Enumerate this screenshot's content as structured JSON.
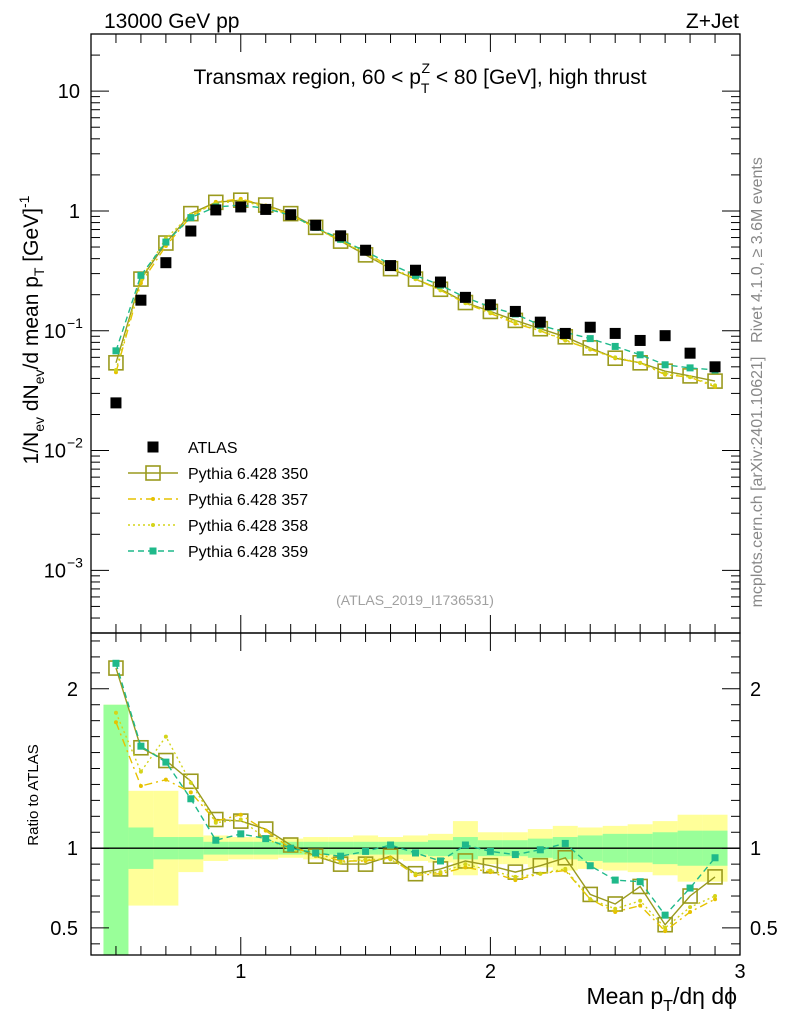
{
  "header": {
    "left": "13000 GeV pp",
    "right": "Z+Jet"
  },
  "title": {
    "prefix": "Transmax region, 60 < p",
    "sub": "T",
    "sup": "Z",
    "suffix": " < 80 [GeV], high thrust"
  },
  "side": {
    "rivet": "Rivet 4.1.0, ≥ 3.6M events",
    "mcplots": "mcplots.cern.ch [arXiv:2401.10621]"
  },
  "analysis_id": "(ATLAS_2019_I1736531)",
  "ylabel_main": "1/N_ev dN_ev/d mean p_T [GeV]^-1",
  "ylabel_ratio": "Ratio to ATLAS",
  "xlabel": "Mean p_T/dη dϕ",
  "colors": {
    "atlas": "#000000",
    "p350": "#9a9a1e",
    "p357": "#e6c200",
    "p358": "#d4d41a",
    "p359": "#1fb98a",
    "band_green": "#99ff99",
    "band_yellow": "#ffff99"
  },
  "chart_data": [
    {
      "type": "scatter",
      "panel": "main",
      "yscale": "log",
      "xlim": [
        0.4,
        3.0
      ],
      "ylim": [
        0.0003,
        30
      ],
      "x_ticks": [
        1,
        2,
        3
      ],
      "y_ticks": [
        {
          "v": 10,
          "label": "10"
        },
        {
          "v": 1,
          "label": "1"
        },
        {
          "v": 0.1,
          "label": "10",
          "exp": "−1"
        },
        {
          "v": 0.01,
          "label": "10",
          "exp": "−2"
        },
        {
          "v": 0.001,
          "label": "10",
          "exp": "−3"
        }
      ],
      "x": [
        0.5,
        0.6,
        0.7,
        0.8,
        0.9,
        1.0,
        1.1,
        1.2,
        1.3,
        1.4,
        1.5,
        1.6,
        1.7,
        1.8,
        1.9,
        2.0,
        2.1,
        2.2,
        2.3,
        2.4,
        2.5,
        2.6,
        2.7,
        2.8,
        2.9
      ],
      "legend": [
        "ATLAS",
        "Pythia 6.428 350",
        "Pythia 6.428 357",
        "Pythia 6.428 358",
        "Pythia 6.428 359"
      ],
      "series": [
        {
          "name": "ATLAS",
          "style": "data",
          "values": [
            0.025,
            0.18,
            0.37,
            0.68,
            1.02,
            1.08,
            1.03,
            0.93,
            0.76,
            0.62,
            0.47,
            0.35,
            0.32,
            0.255,
            0.19,
            0.165,
            0.145,
            0.118,
            0.095,
            0.107,
            0.095,
            0.083,
            0.091,
            0.065,
            0.05
          ]
        },
        {
          "name": "Pythia 6.428 350",
          "style": "p350",
          "values": [
            0.054,
            0.27,
            0.54,
            0.95,
            1.18,
            1.23,
            1.12,
            0.95,
            0.73,
            0.56,
            0.43,
            0.33,
            0.27,
            0.222,
            0.172,
            0.145,
            0.122,
            0.104,
            0.089,
            0.072,
            0.059,
            0.054,
            0.046,
            0.042,
            0.038
          ]
        },
        {
          "name": "Pythia 6.428 357",
          "style": "p357",
          "values": [
            0.045,
            0.25,
            0.51,
            0.9,
            1.19,
            1.26,
            1.11,
            0.93,
            0.72,
            0.57,
            0.45,
            0.34,
            0.27,
            0.218,
            0.17,
            0.14,
            0.115,
            0.1,
            0.083,
            0.07,
            0.059,
            0.054,
            0.043,
            0.041,
            0.034
          ]
        },
        {
          "name": "Pythia 6.428 358",
          "style": "p358",
          "values": [
            0.047,
            0.27,
            0.59,
            0.93,
            1.15,
            1.22,
            1.08,
            0.92,
            0.72,
            0.56,
            0.44,
            0.33,
            0.27,
            0.218,
            0.17,
            0.142,
            0.118,
            0.1,
            0.084,
            0.07,
            0.06,
            0.054,
            0.044,
            0.041,
            0.035
          ]
        },
        {
          "name": "Pythia 6.428 359",
          "style": "p359",
          "values": [
            0.068,
            0.29,
            0.55,
            0.88,
            1.08,
            1.12,
            1.05,
            0.92,
            0.73,
            0.58,
            0.46,
            0.36,
            0.29,
            0.24,
            0.19,
            0.158,
            0.138,
            0.111,
            0.097,
            0.086,
            0.074,
            0.063,
            0.052,
            0.049,
            0.047
          ]
        }
      ]
    },
    {
      "type": "line",
      "panel": "ratio",
      "xlim": [
        0.4,
        3.0
      ],
      "ylim": [
        0.33,
        2.35
      ],
      "y_ticks": [
        {
          "v": 0.5,
          "label": "0.5"
        },
        {
          "v": 1,
          "label": "1"
        },
        {
          "v": 2,
          "label": "2"
        }
      ],
      "x": [
        0.5,
        0.6,
        0.7,
        0.8,
        0.9,
        1.0,
        1.1,
        1.2,
        1.3,
        1.4,
        1.5,
        1.6,
        1.7,
        1.8,
        1.9,
        2.0,
        2.1,
        2.2,
        2.3,
        2.4,
        2.5,
        2.6,
        2.7,
        2.8,
        2.9
      ],
      "bands": {
        "green_half": [
          0.9,
          0.13,
          0.07,
          0.07,
          0.04,
          0.04,
          0.04,
          0.04,
          0.04,
          0.04,
          0.04,
          0.04,
          0.04,
          0.05,
          0.07,
          0.05,
          0.05,
          0.06,
          0.07,
          0.08,
          0.09,
          0.09,
          0.1,
          0.11,
          0.11
        ],
        "yellow_half": [
          0.9,
          0.36,
          0.36,
          0.15,
          0.08,
          0.07,
          0.07,
          0.06,
          0.07,
          0.07,
          0.08,
          0.07,
          0.08,
          0.09,
          0.17,
          0.1,
          0.1,
          0.12,
          0.14,
          0.13,
          0.14,
          0.15,
          0.17,
          0.21,
          0.21
        ]
      },
      "series": [
        {
          "name": "Pythia 6.428 350",
          "style": "p350",
          "values": [
            2.13,
            1.63,
            1.55,
            1.42,
            1.18,
            1.17,
            1.12,
            1.02,
            0.95,
            0.9,
            0.9,
            0.95,
            0.84,
            0.87,
            0.92,
            0.89,
            0.85,
            0.89,
            0.94,
            0.71,
            0.65,
            0.76,
            0.52,
            0.7,
            0.82
          ]
        },
        {
          "name": "Pythia 6.428 357",
          "style": "p357",
          "values": [
            1.79,
            1.39,
            1.43,
            1.35,
            1.17,
            1.21,
            1.11,
            1.0,
            0.97,
            0.92,
            0.92,
            0.94,
            0.83,
            0.84,
            0.88,
            0.85,
            0.8,
            0.84,
            0.86,
            0.68,
            0.6,
            0.64,
            0.48,
            0.6,
            0.68
          ]
        },
        {
          "name": "Pythia 6.428 358",
          "style": "p358",
          "values": [
            1.85,
            1.48,
            1.7,
            1.41,
            1.16,
            1.18,
            1.06,
            0.99,
            0.95,
            0.91,
            0.93,
            0.93,
            0.84,
            0.85,
            0.9,
            0.86,
            0.82,
            0.84,
            0.87,
            0.68,
            0.62,
            0.67,
            0.5,
            0.63,
            0.7
          ]
        },
        {
          "name": "Pythia 6.428 359",
          "style": "p359",
          "values": [
            2.16,
            1.64,
            1.54,
            1.31,
            1.05,
            1.09,
            1.06,
            1.0,
            0.97,
            0.95,
            0.98,
            1.02,
            0.97,
            0.92,
            1.02,
            0.98,
            0.96,
            0.99,
            1.03,
            0.89,
            0.8,
            0.79,
            0.58,
            0.75,
            0.94
          ]
        }
      ]
    }
  ]
}
